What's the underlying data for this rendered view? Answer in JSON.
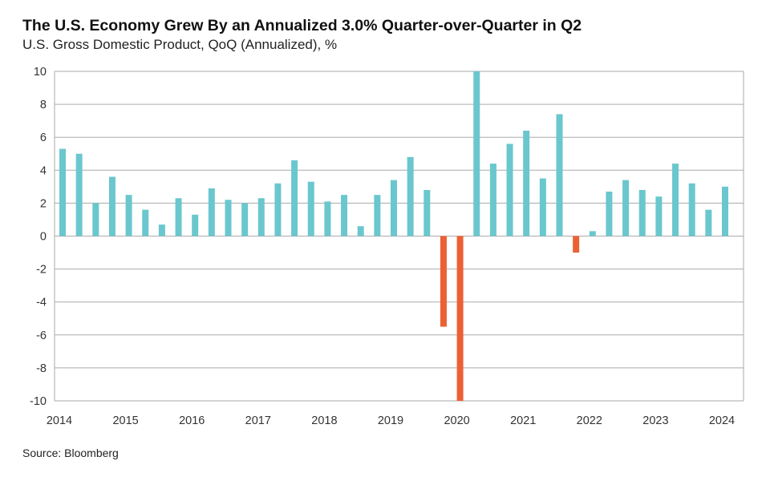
{
  "chart_data": {
    "type": "bar",
    "title": "The U.S. Economy Grew By an Annualized 3.0% Quarter-over-Quarter in Q2",
    "subtitle": "U.S. Gross Domestic Product, QoQ (Annualized), %",
    "source": "Source: Bloomberg",
    "categories": [
      "2014Q2",
      "2014Q3",
      "2014Q4",
      "2015Q1",
      "2015Q2",
      "2015Q3",
      "2015Q4",
      "2016Q1",
      "2016Q2",
      "2016Q3",
      "2016Q4",
      "2017Q1",
      "2017Q2",
      "2017Q3",
      "2017Q4",
      "2018Q1",
      "2018Q2",
      "2018Q3",
      "2018Q4",
      "2019Q1",
      "2019Q2",
      "2019Q3",
      "2019Q4",
      "2020Q1",
      "2020Q2",
      "2020Q3",
      "2020Q4",
      "2021Q1",
      "2021Q2",
      "2021Q3",
      "2021Q4",
      "2022Q1",
      "2022Q2",
      "2022Q3",
      "2022Q4",
      "2023Q1",
      "2023Q2",
      "2023Q3",
      "2023Q4",
      "2024Q1",
      "2024Q2"
    ],
    "values": [
      5.3,
      5.0,
      2.0,
      3.6,
      2.5,
      1.6,
      0.7,
      2.3,
      1.3,
      2.9,
      2.2,
      2.0,
      2.3,
      3.2,
      4.6,
      3.3,
      2.1,
      2.5,
      0.6,
      2.5,
      3.4,
      4.8,
      2.8,
      -5.5,
      -10,
      10,
      4.4,
      5.6,
      6.4,
      3.5,
      7.4,
      -1.0,
      0.3,
      2.7,
      3.4,
      2.8,
      2.4,
      4.4,
      3.2,
      1.6,
      3.0
    ],
    "x_tick_labels": [
      "2014",
      "2015",
      "2016",
      "2017",
      "2018",
      "2019",
      "2020",
      "2021",
      "2022",
      "2023",
      "2024"
    ],
    "y_ticks": [
      10,
      8,
      6,
      4,
      2,
      0,
      -2,
      -4,
      -6,
      -8,
      -10
    ],
    "ylim": [
      -10,
      10
    ],
    "grid": true,
    "colors": {
      "positive": "#6AC7CE",
      "negative": "#EC6134",
      "grid": "#AAAAAA"
    }
  }
}
